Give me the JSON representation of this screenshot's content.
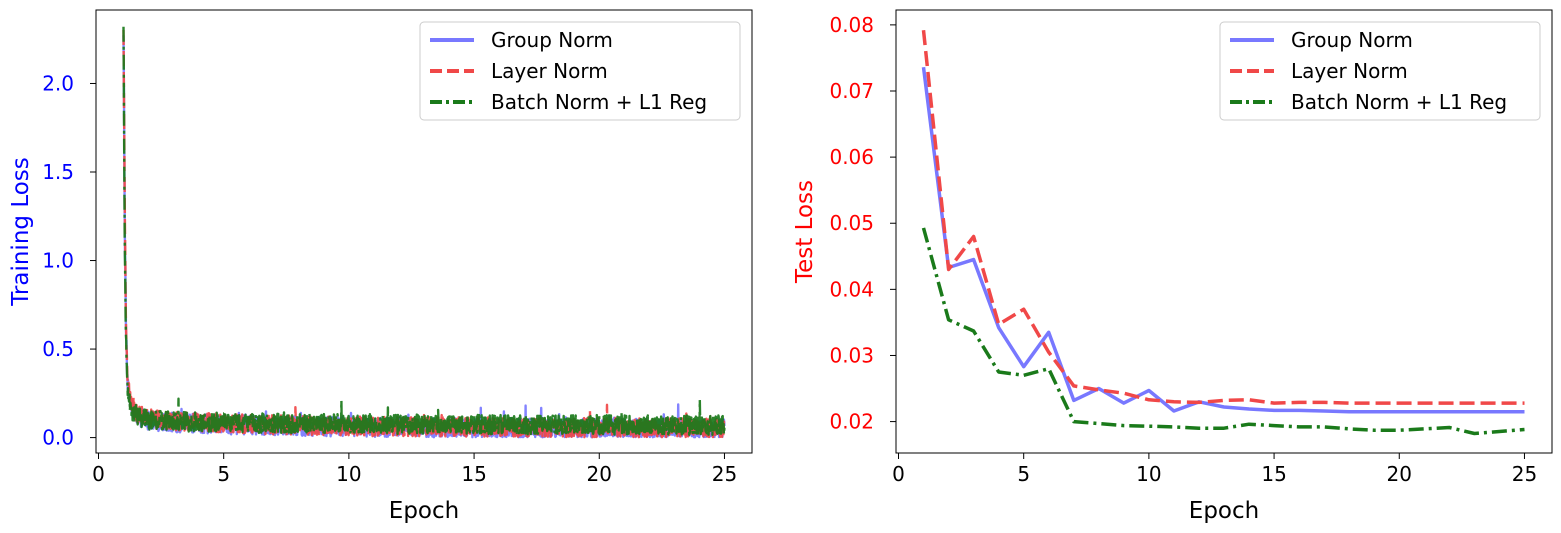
{
  "chart_data": [
    {
      "type": "line",
      "title": "",
      "xlabel": "Epoch",
      "ylabel": "Training Loss",
      "ylabel_color": "#0000ff",
      "ytick_color": "#0000ff",
      "xlim": [
        -0.1,
        26.1
      ],
      "ylim": [
        -0.087,
        2.415
      ],
      "xticks": [
        0,
        5,
        10,
        15,
        20,
        25
      ],
      "xtick_labels": [
        "0",
        "5",
        "10",
        "15",
        "20",
        "25"
      ],
      "yticks": [
        0.0,
        0.5,
        1.0,
        1.5,
        2.0
      ],
      "ytick_labels": [
        "0.0",
        "0.5",
        "1.0",
        "1.5",
        "2.0"
      ],
      "grid": false,
      "legend_position": "top-right",
      "noisy_training_curves": true,
      "series": [
        {
          "name": "Group Norm",
          "color": "#7878ff",
          "style": "solid",
          "x": [
            1.0,
            1.05,
            1.1,
            1.15,
            1.2,
            1.3,
            1.4,
            1.6,
            1.8,
            2.0,
            2.5,
            3,
            4,
            5,
            6,
            8,
            10,
            12,
            15,
            18,
            20,
            22,
            25
          ],
          "y": [
            2.32,
            1.2,
            0.6,
            0.35,
            0.25,
            0.18,
            0.15,
            0.12,
            0.11,
            0.1,
            0.09,
            0.085,
            0.08,
            0.075,
            0.07,
            0.065,
            0.06,
            0.058,
            0.055,
            0.053,
            0.052,
            0.05,
            0.05
          ]
        },
        {
          "name": "Layer Norm",
          "color": "#f04848",
          "style": "dashed",
          "x": [
            1.0,
            1.05,
            1.1,
            1.15,
            1.2,
            1.3,
            1.4,
            1.6,
            1.8,
            2.0,
            2.5,
            3,
            4,
            5,
            6,
            8,
            10,
            12,
            15,
            18,
            20,
            22,
            25
          ],
          "y": [
            2.33,
            1.3,
            0.65,
            0.38,
            0.27,
            0.19,
            0.16,
            0.13,
            0.12,
            0.11,
            0.095,
            0.09,
            0.085,
            0.08,
            0.075,
            0.07,
            0.065,
            0.062,
            0.06,
            0.058,
            0.056,
            0.055,
            0.054
          ]
        },
        {
          "name": "Batch Norm + L1 Reg",
          "color": "#1a7a1a",
          "style": "dashdot",
          "x": [
            1.0,
            1.05,
            1.1,
            1.15,
            1.2,
            1.3,
            1.4,
            1.6,
            1.8,
            2.0,
            2.5,
            3,
            4,
            5,
            6,
            8,
            10,
            12,
            15,
            18,
            20,
            22,
            25
          ],
          "y": [
            2.3,
            1.1,
            0.55,
            0.32,
            0.23,
            0.17,
            0.14,
            0.12,
            0.11,
            0.1,
            0.095,
            0.09,
            0.088,
            0.085,
            0.082,
            0.08,
            0.078,
            0.076,
            0.074,
            0.073,
            0.072,
            0.071,
            0.07
          ]
        }
      ]
    },
    {
      "type": "line",
      "title": "",
      "xlabel": "Epoch",
      "ylabel": "Test Loss",
      "ylabel_color": "#ff0000",
      "ytick_color": "#ff0000",
      "xlim": [
        -0.1,
        26.1
      ],
      "ylim": [
        0.01525,
        0.08225
      ],
      "xticks": [
        0,
        5,
        10,
        15,
        20,
        25
      ],
      "xtick_labels": [
        "0",
        "5",
        "10",
        "15",
        "20",
        "25"
      ],
      "yticks": [
        0.02,
        0.03,
        0.04,
        0.05,
        0.06,
        0.07,
        0.08
      ],
      "ytick_labels": [
        "0.02",
        "0.03",
        "0.04",
        "0.05",
        "0.06",
        "0.07",
        "0.08"
      ],
      "grid": false,
      "legend_position": "top-right",
      "x": [
        1,
        2,
        3,
        4,
        5,
        6,
        7,
        8,
        9,
        10,
        11,
        12,
        13,
        14,
        15,
        16,
        17,
        18,
        19,
        20,
        21,
        22,
        23,
        24,
        25
      ],
      "series": [
        {
          "name": "Group Norm",
          "color": "#7878ff",
          "style": "solid",
          "values": [
            0.0736,
            0.0433,
            0.0445,
            0.0342,
            0.0283,
            0.0335,
            0.0232,
            0.025,
            0.0228,
            0.0247,
            0.0216,
            0.023,
            0.0222,
            0.0219,
            0.0217,
            0.0217,
            0.0216,
            0.0215,
            0.0215,
            0.0215,
            0.0215,
            0.0215,
            0.0215,
            0.0215,
            0.0215
          ]
        },
        {
          "name": "Layer Norm",
          "color": "#f04848",
          "style": "dashed",
          "values": [
            0.0792,
            0.043,
            0.048,
            0.0347,
            0.037,
            0.0305,
            0.0254,
            0.0248,
            0.0243,
            0.0233,
            0.023,
            0.0229,
            0.0232,
            0.0233,
            0.0228,
            0.0229,
            0.0229,
            0.0228,
            0.0228,
            0.0228,
            0.0228,
            0.0228,
            0.0228,
            0.0228,
            0.0228
          ]
        },
        {
          "name": "Batch Norm + L1 Reg",
          "color": "#1a7a1a",
          "style": "dashdot",
          "values": [
            0.0493,
            0.0354,
            0.0337,
            0.0275,
            0.027,
            0.028,
            0.02,
            0.0197,
            0.0194,
            0.0193,
            0.0192,
            0.019,
            0.019,
            0.0196,
            0.0194,
            0.0192,
            0.0192,
            0.0189,
            0.0187,
            0.0187,
            0.0189,
            0.0191,
            0.0182,
            0.0185,
            0.0188
          ]
        }
      ]
    }
  ]
}
